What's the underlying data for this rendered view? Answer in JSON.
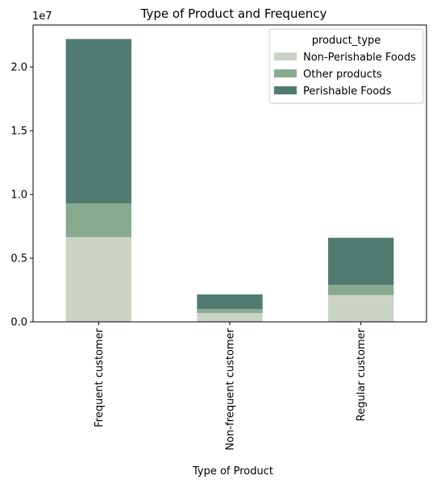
{
  "chart_data": {
    "type": "bar",
    "stacked": true,
    "title": "Type of Product and Frequency",
    "xlabel": "Type of Product",
    "ylabel": "",
    "y_offset_label": "1e7",
    "ylim": [
      0,
      23300000
    ],
    "yticks": [
      0,
      5000000,
      10000000,
      15000000,
      20000000
    ],
    "ytick_labels": [
      "0.0",
      "0.5",
      "1.0",
      "1.5",
      "2.0"
    ],
    "categories": [
      "Frequent customer",
      "Non-frequent customer",
      "Regular customer"
    ],
    "series": [
      {
        "name": "Non-Perishable Foods",
        "color": "#cbd3c7",
        "values": [
          6650000,
          700000,
          2100000
        ]
      },
      {
        "name": "Other products",
        "color": "#88aa8f",
        "values": [
          2650000,
          300000,
          800000
        ]
      },
      {
        "name": "Perishable Foods",
        "color": "#517a70",
        "values": [
          12900000,
          1150000,
          3700000
        ]
      }
    ],
    "legend": {
      "title": "product_type",
      "placement": "top-right"
    },
    "grid": false
  }
}
